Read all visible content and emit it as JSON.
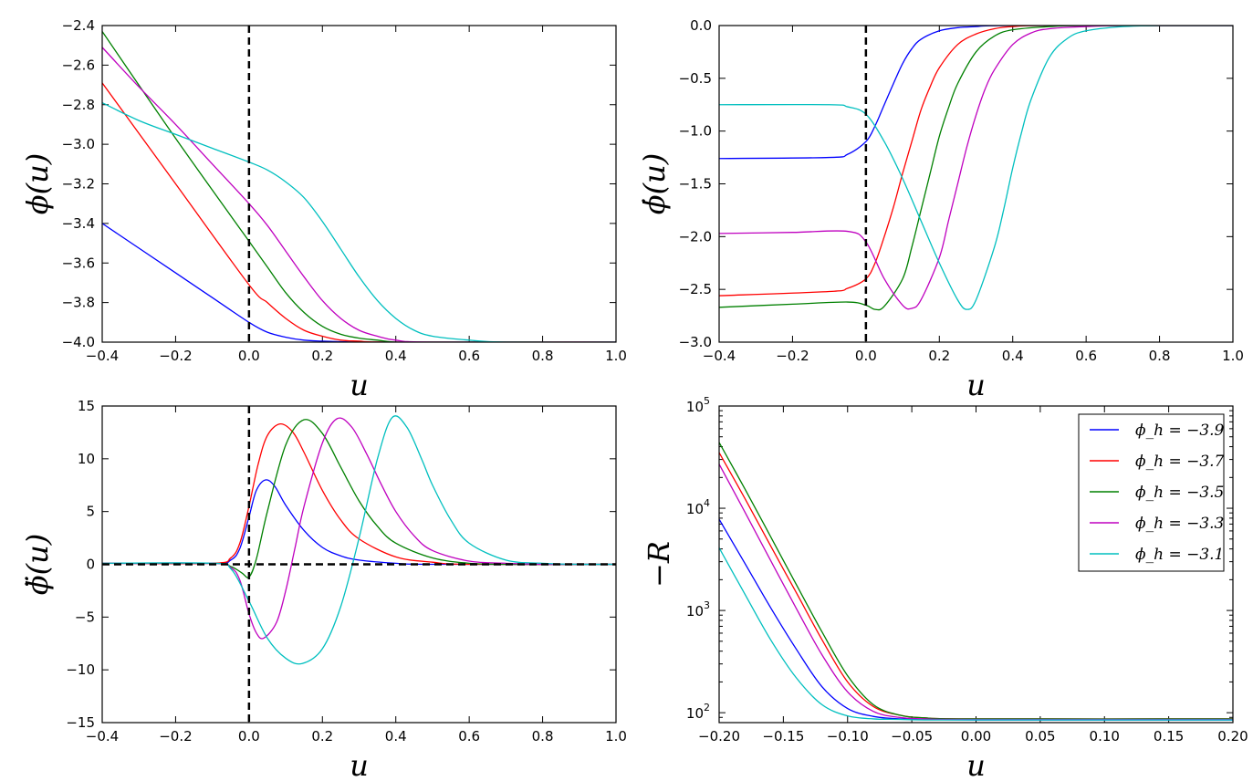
{
  "chart_data": [
    {
      "id": "phi",
      "type": "line",
      "xlabel": "u",
      "ylabel": "ϕ(u)",
      "xlim": [
        -0.4,
        1.0
      ],
      "ylim": [
        -4.0,
        -2.4
      ],
      "xticks": [
        -0.4,
        -0.2,
        0.0,
        0.2,
        0.4,
        0.6,
        0.8,
        1.0
      ],
      "xtick_labels": [
        "−0.4",
        "−0.2",
        "0.0",
        "0.2",
        "0.4",
        "0.6",
        "0.8",
        "1.0"
      ],
      "yticks": [
        -4.0,
        -3.8,
        -3.6,
        -3.4,
        -3.2,
        -3.0,
        -2.8,
        -2.6,
        -2.4
      ],
      "ytick_labels": [
        "−4.0",
        "−3.8",
        "−3.6",
        "−3.4",
        "−3.2",
        "−3.0",
        "−2.8",
        "−2.6",
        "−2.4"
      ],
      "vline_x": 0.0,
      "series": [
        {
          "name": "ϕ_h = −3.9",
          "color": "#0000ff",
          "x": [
            -0.4,
            -0.2,
            -0.1,
            0.0,
            0.05,
            0.1,
            0.15,
            0.2,
            0.3,
            0.4,
            1.0
          ],
          "y": [
            -3.4,
            -3.65,
            -3.775,
            -3.9,
            -3.95,
            -3.975,
            -3.99,
            -3.995,
            -4.0,
            -4.0,
            -4.0
          ]
        },
        {
          "name": "ϕ_h = −3.7",
          "color": "#ff0000",
          "x": [
            -0.4,
            -0.2,
            0.0,
            0.05,
            0.1,
            0.15,
            0.2,
            0.25,
            0.3,
            0.4,
            1.0
          ],
          "y": [
            -2.69,
            -3.2,
            -3.71,
            -3.8,
            -3.88,
            -3.94,
            -3.97,
            -3.99,
            -3.995,
            -4.0,
            -4.0
          ]
        },
        {
          "name": "ϕ_h = −3.5",
          "color": "#008000",
          "x": [
            -0.4,
            -0.2,
            0.0,
            0.05,
            0.1,
            0.15,
            0.2,
            0.25,
            0.3,
            0.35,
            0.4,
            0.5,
            1.0
          ],
          "y": [
            -2.43,
            -2.97,
            -3.49,
            -3.62,
            -3.75,
            -3.85,
            -3.92,
            -3.96,
            -3.98,
            -3.99,
            -4.0,
            -4.0,
            -4.0
          ]
        },
        {
          "name": "ϕ_h = −3.3",
          "color": "#bf00bf",
          "x": [
            -0.4,
            -0.3,
            -0.2,
            -0.1,
            0.0,
            0.05,
            0.1,
            0.15,
            0.2,
            0.25,
            0.3,
            0.35,
            0.4,
            0.5,
            1.0
          ],
          "y": [
            -2.51,
            -2.71,
            -2.9,
            -3.1,
            -3.3,
            -3.41,
            -3.54,
            -3.67,
            -3.79,
            -3.88,
            -3.94,
            -3.97,
            -3.99,
            -4.0,
            -4.0
          ]
        },
        {
          "name": "ϕ_h = −3.1",
          "color": "#00bfbf",
          "x": [
            -0.4,
            -0.3,
            -0.2,
            -0.1,
            0.0,
            0.05,
            0.1,
            0.15,
            0.2,
            0.25,
            0.3,
            0.35,
            0.4,
            0.45,
            0.5,
            0.6,
            0.7,
            1.0
          ],
          "y": [
            -2.79,
            -2.88,
            -2.95,
            -3.02,
            -3.09,
            -3.13,
            -3.19,
            -3.27,
            -3.39,
            -3.53,
            -3.67,
            -3.79,
            -3.88,
            -3.94,
            -3.97,
            -3.99,
            -4.0,
            -4.0
          ]
        }
      ]
    },
    {
      "id": "phidot",
      "type": "line",
      "xlabel": "u",
      "ylabel": "ϕ̇(u)",
      "xlim": [
        -0.4,
        1.0
      ],
      "ylim": [
        -3.0,
        0.0
      ],
      "xticks": [
        -0.4,
        -0.2,
        0.0,
        0.2,
        0.4,
        0.6,
        0.8,
        1.0
      ],
      "xtick_labels": [
        "−0.4",
        "−0.2",
        "0.0",
        "0.2",
        "0.4",
        "0.6",
        "0.8",
        "1.0"
      ],
      "yticks": [
        -3.0,
        -2.5,
        -2.0,
        -1.5,
        -1.0,
        -0.5,
        0.0
      ],
      "ytick_labels": [
        "−3.0",
        "−2.5",
        "−2.0",
        "−1.5",
        "−1.0",
        "−0.5",
        "0.0"
      ],
      "vline_x": 0.0,
      "series": [
        {
          "name": "ϕ_h = −3.9",
          "color": "#0000ff",
          "x": [
            -0.4,
            -0.1,
            -0.05,
            0.0,
            0.025,
            0.05,
            0.075,
            0.1,
            0.125,
            0.15,
            0.2,
            0.25,
            0.3,
            0.4,
            1.0
          ],
          "y": [
            -1.26,
            -1.25,
            -1.22,
            -1.1,
            -0.95,
            -0.75,
            -0.55,
            -0.36,
            -0.22,
            -0.13,
            -0.05,
            -0.02,
            -0.01,
            0.0,
            0.0
          ]
        },
        {
          "name": "ϕ_h = −3.7",
          "color": "#ff0000",
          "x": [
            -0.4,
            -0.1,
            -0.05,
            0.0,
            0.025,
            0.05,
            0.075,
            0.1,
            0.125,
            0.15,
            0.175,
            0.2,
            0.25,
            0.3,
            0.35,
            0.4,
            0.5,
            1.0
          ],
          "y": [
            -2.56,
            -2.52,
            -2.49,
            -2.4,
            -2.25,
            -2.0,
            -1.72,
            -1.4,
            -1.1,
            -0.8,
            -0.58,
            -0.4,
            -0.18,
            -0.08,
            -0.03,
            -0.01,
            0.0,
            0.0
          ]
        },
        {
          "name": "ϕ_h = −3.5",
          "color": "#008000",
          "x": [
            -0.4,
            -0.2,
            -0.05,
            0.0,
            0.025,
            0.05,
            0.1,
            0.125,
            0.15,
            0.175,
            0.2,
            0.225,
            0.25,
            0.3,
            0.35,
            0.4,
            0.5,
            0.6,
            1.0
          ],
          "y": [
            -2.67,
            -2.64,
            -2.62,
            -2.65,
            -2.69,
            -2.66,
            -2.4,
            -2.1,
            -1.75,
            -1.4,
            -1.05,
            -0.78,
            -0.55,
            -0.25,
            -0.1,
            -0.04,
            -0.01,
            0.0,
            0.0
          ]
        },
        {
          "name": "ϕ_h = −3.3",
          "color": "#bf00bf",
          "x": [
            -0.4,
            -0.2,
            -0.05,
            0.0,
            0.05,
            0.1,
            0.125,
            0.15,
            0.2,
            0.225,
            0.25,
            0.275,
            0.3,
            0.325,
            0.35,
            0.4,
            0.45,
            0.5,
            0.6,
            0.7,
            1.0
          ],
          "y": [
            -1.97,
            -1.96,
            -1.95,
            -2.05,
            -2.4,
            -2.65,
            -2.68,
            -2.6,
            -2.2,
            -1.85,
            -1.5,
            -1.15,
            -0.85,
            -0.6,
            -0.42,
            -0.18,
            -0.07,
            -0.03,
            -0.01,
            0.0,
            0.0
          ]
        },
        {
          "name": "ϕ_h = −3.1",
          "color": "#00bfbf",
          "x": [
            -0.4,
            -0.1,
            -0.05,
            0.0,
            0.05,
            0.1,
            0.15,
            0.2,
            0.25,
            0.275,
            0.3,
            0.35,
            0.375,
            0.4,
            0.425,
            0.45,
            0.5,
            0.55,
            0.6,
            0.7,
            0.8,
            1.0
          ],
          "y": [
            -0.75,
            -0.75,
            -0.77,
            -0.84,
            -1.1,
            -1.45,
            -1.85,
            -2.25,
            -2.6,
            -2.69,
            -2.6,
            -2.1,
            -1.75,
            -1.35,
            -1.0,
            -0.7,
            -0.3,
            -0.12,
            -0.05,
            -0.01,
            0.0,
            0.0
          ]
        }
      ]
    },
    {
      "id": "phiddot",
      "type": "line",
      "xlabel": "u",
      "ylabel": "ϕ̈(u)",
      "xlim": [
        -0.4,
        1.0
      ],
      "ylim": [
        -15,
        15
      ],
      "xticks": [
        -0.4,
        -0.2,
        0.0,
        0.2,
        0.4,
        0.6,
        0.8,
        1.0
      ],
      "xtick_labels": [
        "−0.4",
        "−0.2",
        "0.0",
        "0.2",
        "0.4",
        "0.6",
        "0.8",
        "1.0"
      ],
      "yticks": [
        -15,
        -10,
        -5,
        0,
        5,
        10,
        15
      ],
      "ytick_labels": [
        "−15",
        "−10",
        "−5",
        "0",
        "5",
        "10",
        "15"
      ],
      "vline_x": 0.0,
      "hline_y": 0.0,
      "series": [
        {
          "name": "ϕ_h = −3.9",
          "color": "#0000ff",
          "x": [
            -0.4,
            -0.1,
            -0.05,
            -0.025,
            0.0,
            0.02,
            0.045,
            0.07,
            0.1,
            0.15,
            0.2,
            0.25,
            0.3,
            0.4,
            0.5,
            1.0
          ],
          "y": [
            0.1,
            0.1,
            0.4,
            1.5,
            4.5,
            7.0,
            8.0,
            7.4,
            5.6,
            3.2,
            1.6,
            0.8,
            0.4,
            0.1,
            0.0,
            0.0
          ]
        },
        {
          "name": "ϕ_h = −3.7",
          "color": "#ff0000",
          "x": [
            -0.4,
            -0.1,
            -0.05,
            -0.025,
            0.0,
            0.025,
            0.05,
            0.085,
            0.12,
            0.15,
            0.2,
            0.25,
            0.3,
            0.4,
            0.5,
            0.6,
            1.0
          ],
          "y": [
            0.1,
            0.1,
            0.6,
            2.0,
            5.5,
            9.5,
            12.2,
            13.3,
            12.5,
            10.6,
            7.0,
            4.2,
            2.4,
            0.7,
            0.2,
            0.0,
            0.0
          ]
        },
        {
          "name": "ϕ_h = −3.5",
          "color": "#008000",
          "x": [
            -0.4,
            -0.1,
            -0.05,
            -0.02,
            0.0,
            0.02,
            0.05,
            0.1,
            0.15,
            0.2,
            0.25,
            0.3,
            0.35,
            0.4,
            0.5,
            0.6,
            0.7,
            1.0
          ],
          "y": [
            0.1,
            0.1,
            -0.2,
            -0.8,
            -1.2,
            0.5,
            5.0,
            11.3,
            13.7,
            12.4,
            9.2,
            6.0,
            3.6,
            2.0,
            0.6,
            0.1,
            0.0,
            0.0
          ]
        },
        {
          "name": "ϕ_h = −3.3",
          "color": "#bf00bf",
          "x": [
            -0.4,
            -0.1,
            -0.05,
            -0.025,
            0.0,
            0.02,
            0.04,
            0.075,
            0.1,
            0.125,
            0.15,
            0.2,
            0.24,
            0.28,
            0.32,
            0.36,
            0.4,
            0.45,
            0.5,
            0.6,
            0.7,
            0.8,
            1.0
          ],
          "y": [
            0.1,
            0.1,
            -0.3,
            -1.5,
            -4.7,
            -6.5,
            -7.0,
            -5.5,
            -2.5,
            1.5,
            5.5,
            11.5,
            13.8,
            13.0,
            10.5,
            7.6,
            5.0,
            2.7,
            1.3,
            0.3,
            0.1,
            0.0,
            0.0
          ]
        },
        {
          "name": "ϕ_h = −3.1",
          "color": "#00bfbf",
          "x": [
            -0.4,
            -0.1,
            -0.05,
            0.0,
            0.05,
            0.1,
            0.145,
            0.2,
            0.25,
            0.3,
            0.35,
            0.39,
            0.43,
            0.47,
            0.5,
            0.55,
            0.6,
            0.7,
            0.8,
            0.9,
            1.0
          ],
          "y": [
            0.1,
            0.1,
            -0.4,
            -3.5,
            -7.0,
            -8.9,
            -9.4,
            -8.0,
            -4.0,
            2.5,
            10.0,
            13.9,
            13.0,
            10.0,
            7.5,
            4.2,
            2.0,
            0.4,
            0.1,
            0.0,
            0.0
          ]
        }
      ]
    },
    {
      "id": "ricci",
      "type": "line",
      "yscale": "log",
      "xlabel": "u",
      "ylabel": "−R",
      "xlim": [
        -0.2,
        0.2
      ],
      "ylim": [
        80,
        100000
      ],
      "xticks": [
        -0.2,
        -0.15,
        -0.1,
        -0.05,
        0.0,
        0.05,
        0.1,
        0.15,
        0.2
      ],
      "xtick_labels": [
        "−0.20",
        "−0.15",
        "−0.10",
        "−0.05",
        "0.00",
        "0.05",
        "0.10",
        "0.15",
        "0.20"
      ],
      "ytick_labels": [
        {
          "base": "10",
          "exp": "2",
          "value": 100
        },
        {
          "base": "10",
          "exp": "3",
          "value": 1000
        },
        {
          "base": "10",
          "exp": "4",
          "value": 10000
        },
        {
          "base": "10",
          "exp": "5",
          "value": 100000
        }
      ],
      "legend": {
        "position": "top-right",
        "entries": [
          "ϕ_h = −3.9",
          "ϕ_h = −3.7",
          "ϕ_h = −3.5",
          "ϕ_h = −3.3",
          "ϕ_h = −3.1"
        ]
      },
      "series": [
        {
          "name": "ϕ_h = −3.9",
          "color": "#0000ff",
          "x": [
            -0.2,
            -0.18,
            -0.16,
            -0.14,
            -0.12,
            -0.1,
            -0.08,
            -0.06,
            -0.04,
            0.0,
            0.2
          ],
          "y": [
            7800,
            2900,
            1070,
            420,
            180,
            110,
            92,
            87,
            86,
            85,
            85
          ]
        },
        {
          "name": "ϕ_h = −3.7",
          "color": "#ff0000",
          "x": [
            -0.2,
            -0.18,
            -0.16,
            -0.14,
            -0.12,
            -0.1,
            -0.08,
            -0.06,
            -0.04,
            0.0,
            0.2
          ],
          "y": [
            35000,
            12500,
            4300,
            1500,
            520,
            200,
            115,
            95,
            89,
            87,
            87
          ]
        },
        {
          "name": "ϕ_h = −3.5",
          "color": "#008000",
          "x": [
            -0.2,
            -0.18,
            -0.16,
            -0.14,
            -0.12,
            -0.1,
            -0.08,
            -0.06,
            -0.04,
            0.0,
            0.2
          ],
          "y": [
            44000,
            15500,
            5300,
            1800,
            620,
            230,
            120,
            95,
            89,
            87,
            87
          ]
        },
        {
          "name": "ϕ_h = −3.3",
          "color": "#bf00bf",
          "x": [
            -0.2,
            -0.18,
            -0.16,
            -0.14,
            -0.12,
            -0.1,
            -0.08,
            -0.06,
            -0.04,
            0.0,
            0.2
          ],
          "y": [
            27000,
            9200,
            3100,
            1050,
            370,
            160,
            103,
            90,
            87,
            86,
            86
          ]
        },
        {
          "name": "ϕ_h = −3.1",
          "color": "#00bfbf",
          "x": [
            -0.2,
            -0.18,
            -0.16,
            -0.14,
            -0.12,
            -0.1,
            -0.08,
            -0.06,
            -0.04,
            0.0,
            0.2
          ],
          "y": [
            4100,
            1450,
            520,
            220,
            120,
            93,
            87,
            86,
            85,
            85,
            85
          ]
        }
      ]
    }
  ]
}
